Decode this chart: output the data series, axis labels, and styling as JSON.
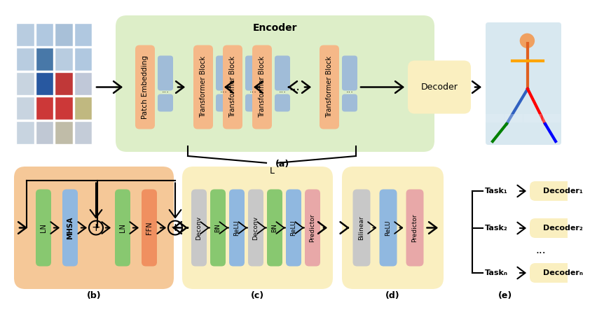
{
  "bg_color": "#ffffff",
  "encoder_bg": "#ddeec8",
  "bottom_bg_b": "#f5c898",
  "bottom_bg_cd": "#faefc0",
  "patch_embed_color": "#f5b888",
  "transformer_block_color": "#f5b888",
  "ln_color": "#88c870",
  "mhsa_color": "#90b8e0",
  "ffn_color": "#f09060",
  "deconv_color": "#c8c8c8",
  "bn_color": "#88c870",
  "relu_color": "#90b8e0",
  "predictor_color": "#e8a8a8",
  "bilinear_color": "#c8c8c8",
  "token_color": "#a0bcd8",
  "decoder_box_color": "#faefc0",
  "label_fontsize": 9,
  "encoder_label": "Encoder",
  "decoder_label": "Decoder",
  "label_a": "(a)",
  "label_b": "(b)",
  "label_c": "(c)",
  "label_d": "(d)",
  "label_e": "(e)",
  "tasks": [
    "Task₁",
    "Task₂",
    "Taskₙ"
  ],
  "decoders": [
    "Decoder₁",
    "Decoder₂",
    "Decoderₙ"
  ],
  "c_parts_labels": [
    "Deconv",
    "BN",
    "ReLU",
    "Deconv",
    "BN",
    "ReLU",
    "Predictor"
  ],
  "d_parts_labels": [
    "Bilinear",
    "ReLU",
    "Predictor"
  ]
}
